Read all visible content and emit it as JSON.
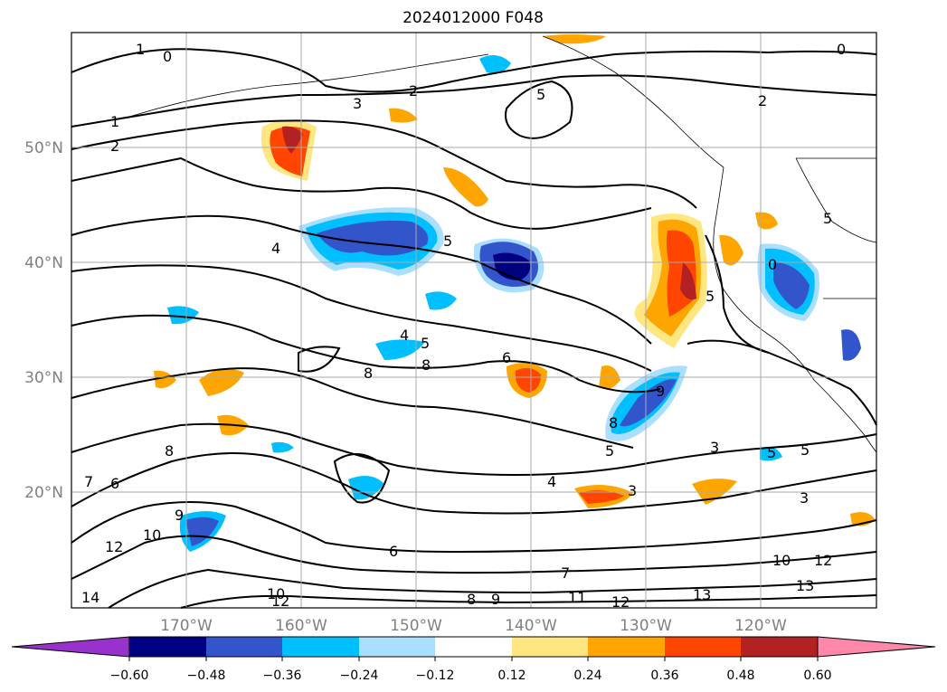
{
  "title": "2024012000 F048",
  "map": {
    "lat_labels": [
      "50°N",
      "40°N",
      "30°N",
      "20°N"
    ],
    "lat_values": [
      50,
      40,
      30,
      20
    ],
    "lon_labels": [
      "170°W",
      "160°W",
      "150°W",
      "140°W",
      "130°W",
      "120°W"
    ],
    "lon_values": [
      -170,
      -160,
      -150,
      -140,
      -130,
      -120
    ],
    "extent": {
      "lon_min": -180,
      "lon_max": -110,
      "lat_min": 10,
      "lat_max": 60
    },
    "grid": true,
    "contour_labels": [
      "0",
      "1",
      "2",
      "3",
      "4",
      "5",
      "6",
      "7",
      "8",
      "9",
      "10",
      "11",
      "12",
      "13",
      "14"
    ]
  },
  "colorbar": {
    "ticks": [
      "−0.60",
      "−0.48",
      "−0.36",
      "−0.24",
      "−0.12",
      "0.12",
      "0.24",
      "0.36",
      "0.48",
      "0.60"
    ],
    "colors": [
      "#9932cc",
      "#000080",
      "#3355cc",
      "#00bfff",
      "#aadfff",
      "#ffffff",
      "#ffe680",
      "#ffa500",
      "#ff4500",
      "#b22222",
      "#ff88aa"
    ],
    "extend": "both"
  },
  "colors": {
    "grid": "#aaaaaa",
    "contour": "#000000",
    "coast": "#000000"
  }
}
